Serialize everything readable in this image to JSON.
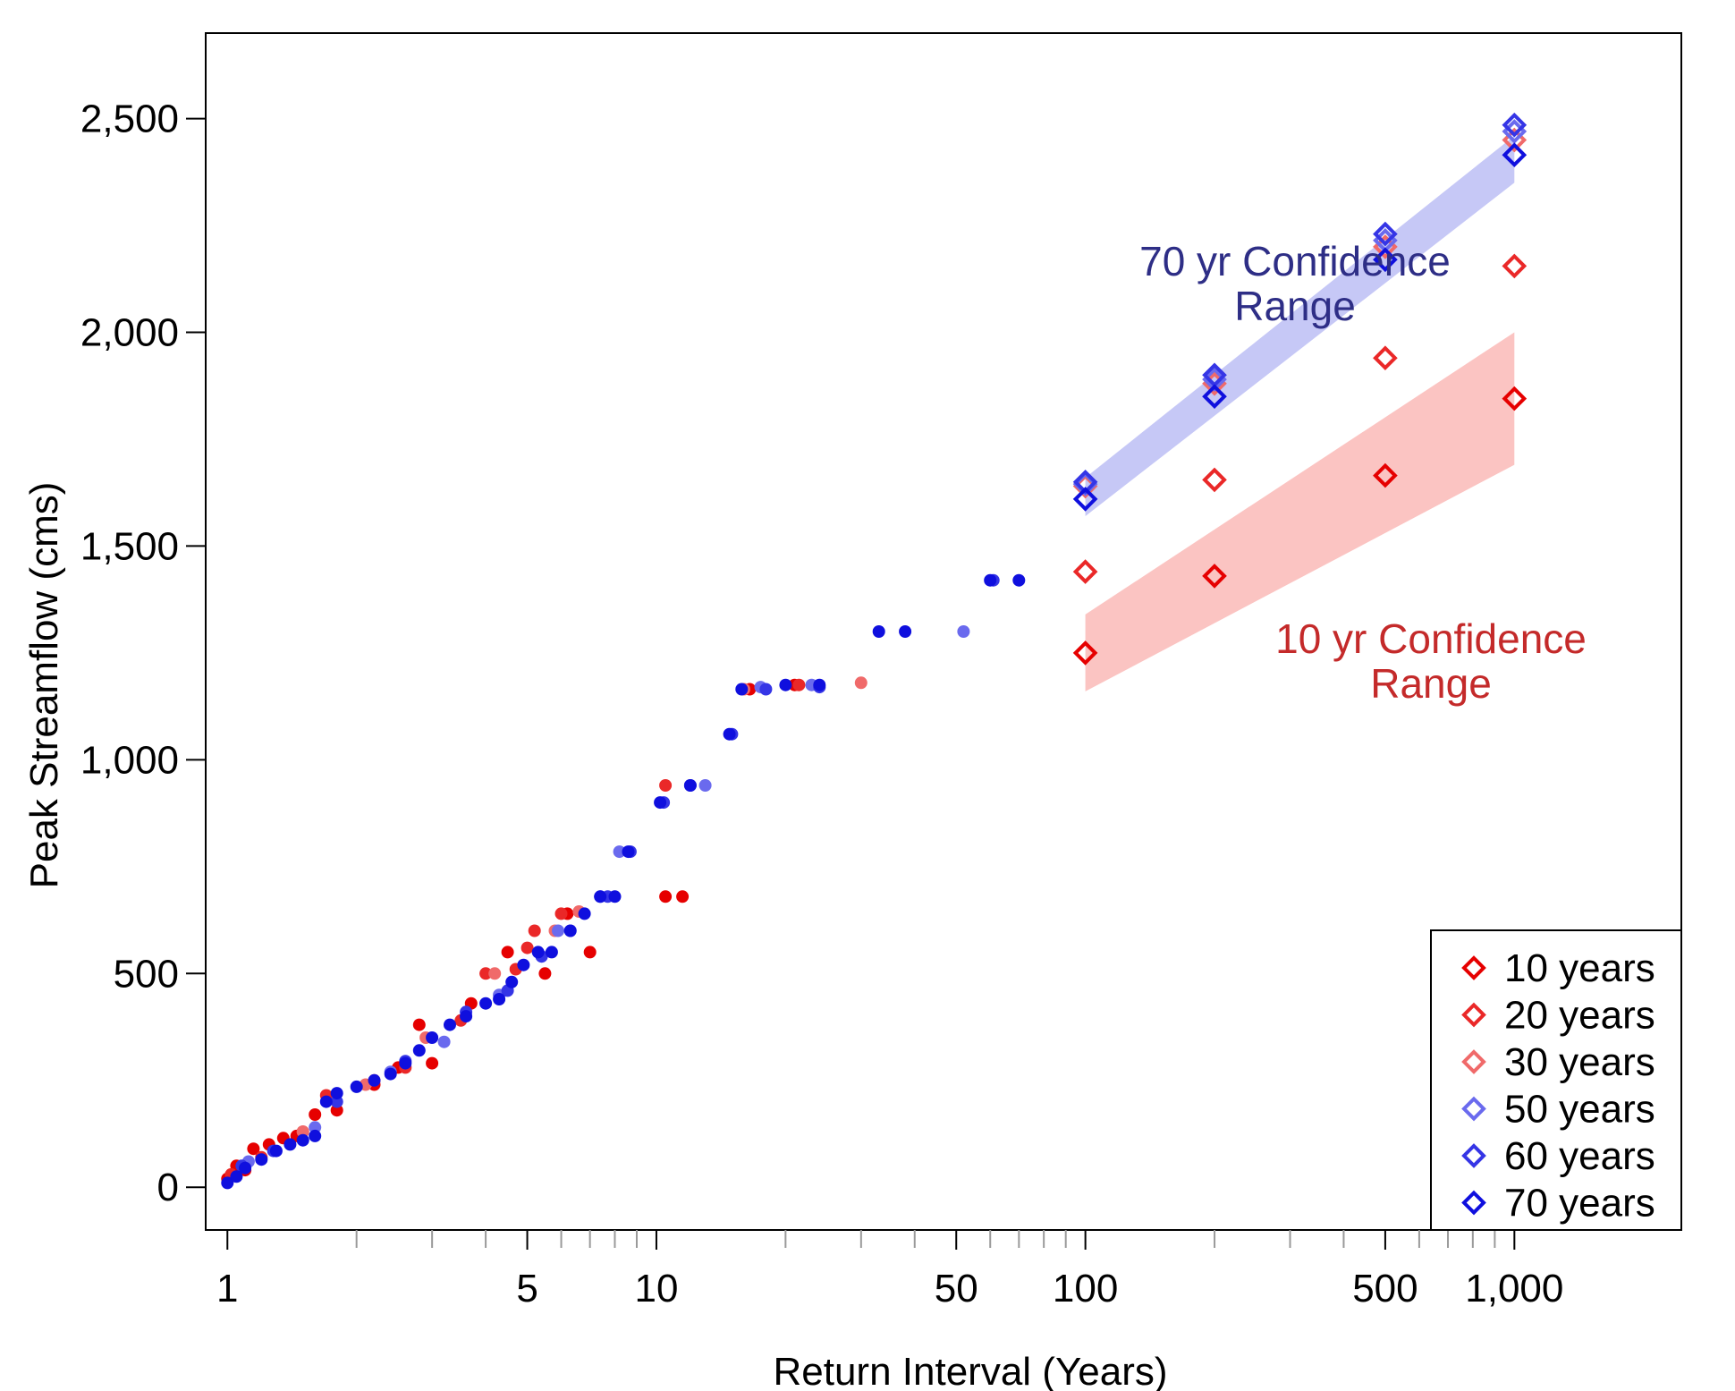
{
  "chart_data": {
    "type": "scatter",
    "xlabel": "Return Interval (Years)",
    "ylabel": "Peak Streamflow (cms)",
    "xscale": "log",
    "xlim": [
      0.89,
      2450
    ],
    "ylim": [
      -100,
      2700
    ],
    "xticks": [
      1,
      5,
      10,
      50,
      100,
      500,
      1000
    ],
    "xtick_labels": [
      "1",
      "5",
      "10",
      "50",
      "100",
      "500",
      "1,000"
    ],
    "yticks": [
      0,
      500,
      1000,
      1500,
      2000,
      2500
    ],
    "ytick_labels": [
      "0",
      "500",
      "1,000",
      "1,500",
      "2,000",
      "2,500"
    ],
    "grid": false,
    "legend": {
      "position": "bottom-right",
      "entries": [
        {
          "label": "10 years",
          "color": "#e60000"
        },
        {
          "label": "20 years",
          "color": "#ea2828"
        },
        {
          "label": "30 years",
          "color": "#f06a6a"
        },
        {
          "label": "50 years",
          "color": "#6a6aee"
        },
        {
          "label": "60 years",
          "color": "#3535e6"
        },
        {
          "label": "70 years",
          "color": "#0f0fde"
        }
      ]
    },
    "confidence_bands": [
      {
        "label_line1": "70 yr Confidence",
        "label_line2": "Range",
        "color": "#c6c8f6",
        "text_color": "#2e2e86",
        "upper": [
          [
            100,
            1660
          ],
          [
            1000,
            2460
          ]
        ],
        "lower": [
          [
            100,
            1570
          ],
          [
            1000,
            2350
          ]
        ]
      },
      {
        "label_line1": "10 yr Confidence",
        "label_line2": "Range",
        "color": "#fbc4c2",
        "text_color": "#c42a2a",
        "upper": [
          [
            100,
            1340
          ],
          [
            1000,
            2000
          ]
        ],
        "lower": [
          [
            100,
            1160
          ],
          [
            1000,
            1690
          ]
        ]
      }
    ],
    "observed_points": [
      {
        "series": "10 years",
        "points": [
          [
            1.0,
            20
          ],
          [
            1.05,
            50
          ],
          [
            1.1,
            40
          ],
          [
            1.15,
            90
          ],
          [
            1.25,
            100
          ],
          [
            1.35,
            115
          ],
          [
            1.45,
            120
          ],
          [
            1.6,
            170
          ],
          [
            1.8,
            180
          ],
          [
            2.2,
            240
          ],
          [
            2.5,
            280
          ],
          [
            2.8,
            380
          ],
          [
            3.0,
            290
          ],
          [
            3.7,
            430
          ],
          [
            4.5,
            550
          ],
          [
            5.5,
            500
          ],
          [
            6.2,
            640
          ],
          [
            7.0,
            550
          ],
          [
            10.5,
            680
          ],
          [
            11.5,
            680
          ],
          [
            16.5,
            1165
          ],
          [
            21.0,
            1175
          ]
        ]
      },
      {
        "series": "20 years",
        "points": [
          [
            1.02,
            30
          ],
          [
            1.2,
            70
          ],
          [
            1.5,
            130
          ],
          [
            1.7,
            215
          ],
          [
            2.2,
            250
          ],
          [
            2.6,
            280
          ],
          [
            3.5,
            390
          ],
          [
            4.0,
            500
          ],
          [
            4.7,
            510
          ],
          [
            5.0,
            560
          ],
          [
            5.2,
            600
          ],
          [
            6.0,
            640
          ],
          [
            10.5,
            940
          ],
          [
            21.5,
            1175
          ]
        ]
      },
      {
        "series": "30 years",
        "points": [
          [
            1.5,
            130
          ],
          [
            2.1,
            240
          ],
          [
            2.9,
            350
          ],
          [
            4.2,
            500
          ],
          [
            5.8,
            600
          ],
          [
            6.6,
            645
          ],
          [
            16.0,
            1165
          ],
          [
            30.0,
            1180
          ]
        ]
      },
      {
        "series": "50 years",
        "points": [
          [
            1.12,
            60
          ],
          [
            1.6,
            140
          ],
          [
            2.4,
            270
          ],
          [
            3.2,
            340
          ],
          [
            4.3,
            450
          ],
          [
            5.9,
            600
          ],
          [
            7.4,
            680
          ],
          [
            8.2,
            785
          ],
          [
            13.0,
            940
          ],
          [
            17.5,
            1170
          ],
          [
            23.0,
            1175
          ],
          [
            52.0,
            1300
          ]
        ]
      },
      {
        "series": "60 years",
        "points": [
          [
            1.08,
            50
          ],
          [
            1.28,
            85
          ],
          [
            1.8,
            200
          ],
          [
            2.6,
            295
          ],
          [
            3.6,
            410
          ],
          [
            4.5,
            460
          ],
          [
            5.4,
            540
          ],
          [
            6.3,
            600
          ],
          [
            7.7,
            680
          ],
          [
            8.7,
            785
          ],
          [
            10.4,
            900
          ],
          [
            12.0,
            940
          ],
          [
            15.0,
            1060
          ],
          [
            18.0,
            1165
          ],
          [
            24.0,
            1170
          ],
          [
            61.0,
            1420
          ]
        ]
      },
      {
        "series": "70 years",
        "points": [
          [
            1.0,
            10
          ],
          [
            1.05,
            25
          ],
          [
            1.1,
            45
          ],
          [
            1.2,
            65
          ],
          [
            1.3,
            85
          ],
          [
            1.4,
            100
          ],
          [
            1.5,
            110
          ],
          [
            1.6,
            120
          ],
          [
            1.7,
            200
          ],
          [
            1.8,
            220
          ],
          [
            2.0,
            235
          ],
          [
            2.2,
            250
          ],
          [
            2.4,
            265
          ],
          [
            2.6,
            290
          ],
          [
            2.8,
            320
          ],
          [
            3.0,
            350
          ],
          [
            3.3,
            380
          ],
          [
            3.6,
            400
          ],
          [
            4.0,
            430
          ],
          [
            4.3,
            440
          ],
          [
            4.6,
            480
          ],
          [
            4.9,
            520
          ],
          [
            5.3,
            550
          ],
          [
            5.7,
            550
          ],
          [
            6.3,
            600
          ],
          [
            6.8,
            640
          ],
          [
            7.4,
            680
          ],
          [
            8.0,
            680
          ],
          [
            8.6,
            785
          ],
          [
            10.2,
            900
          ],
          [
            12.0,
            940
          ],
          [
            14.8,
            1060
          ],
          [
            15.8,
            1165
          ],
          [
            20.0,
            1175
          ],
          [
            24.0,
            1175
          ],
          [
            33.0,
            1300
          ],
          [
            38.0,
            1300
          ],
          [
            60.0,
            1420
          ],
          [
            70.0,
            1420
          ]
        ]
      }
    ],
    "estimates": [
      {
        "series": "10 years",
        "points": [
          [
            100,
            1250
          ],
          [
            200,
            1430
          ],
          [
            500,
            1665
          ],
          [
            1000,
            1845
          ]
        ]
      },
      {
        "series": "20 years",
        "points": [
          [
            100,
            1440
          ],
          [
            200,
            1655
          ],
          [
            500,
            1940
          ],
          [
            1000,
            2155
          ]
        ]
      },
      {
        "series": "30 years",
        "points": [
          [
            100,
            1640
          ],
          [
            200,
            1880
          ],
          [
            500,
            2200
          ],
          [
            1000,
            2450
          ]
        ]
      },
      {
        "series": "50 years",
        "points": [
          [
            100,
            1645
          ],
          [
            200,
            1890
          ],
          [
            500,
            2215
          ],
          [
            1000,
            2470
          ]
        ]
      },
      {
        "series": "60 years",
        "points": [
          [
            100,
            1650
          ],
          [
            200,
            1900
          ],
          [
            500,
            2230
          ],
          [
            1000,
            2485
          ]
        ]
      },
      {
        "series": "70 years",
        "points": [
          [
            100,
            1610
          ],
          [
            200,
            1850
          ],
          [
            500,
            2170
          ],
          [
            1000,
            2415
          ]
        ]
      }
    ]
  }
}
